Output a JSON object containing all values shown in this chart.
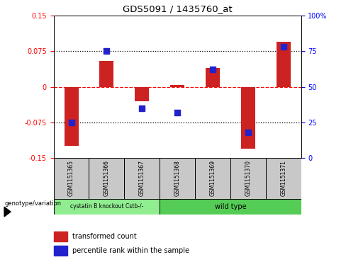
{
  "title": "GDS5091 / 1435760_at",
  "samples": [
    "GSM1151365",
    "GSM1151366",
    "GSM1151367",
    "GSM1151368",
    "GSM1151369",
    "GSM1151370",
    "GSM1151371"
  ],
  "red_values": [
    -0.125,
    0.055,
    -0.03,
    0.003,
    0.04,
    -0.13,
    0.095
  ],
  "blue_values_pct": [
    25,
    75,
    35,
    32,
    62,
    18,
    78
  ],
  "ylim_left": [
    -0.15,
    0.15
  ],
  "ylim_right": [
    0,
    100
  ],
  "yticks_left": [
    -0.15,
    -0.075,
    0,
    0.075,
    0.15
  ],
  "ytick_labels_left": [
    "-0.15",
    "-0.075",
    "0",
    "0.075",
    "0.15"
  ],
  "yticks_right": [
    0,
    25,
    50,
    75,
    100
  ],
  "ytick_labels_right": [
    "0",
    "25",
    "50",
    "75",
    "100%"
  ],
  "group1_label": "cystatin B knockout Cstb-/-",
  "group2_label": "wild type",
  "group1_color": "#90EE90",
  "group2_color": "#55CC55",
  "bar_color": "#CC2222",
  "dot_color": "#2222CC",
  "sample_box_color": "#C8C8C8",
  "legend_red_label": "transformed count",
  "legend_blue_label": "percentile rank within the sample",
  "genotype_label": "genotype/variation"
}
